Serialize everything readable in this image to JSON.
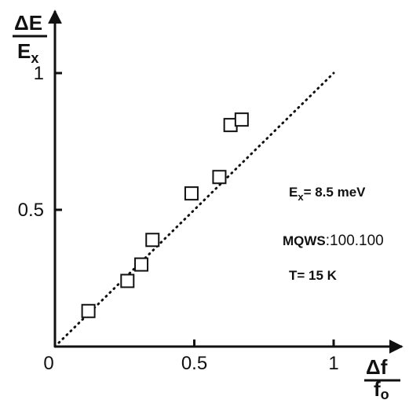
{
  "chart_data": {
    "type": "scatter",
    "xlabel": {
      "num": "Δf",
      "den": "f",
      "den_sub": "o"
    },
    "ylabel": {
      "num": "ΔE",
      "den": "E",
      "den_sub": "x"
    },
    "xlim": [
      0,
      1.2
    ],
    "ylim": [
      0,
      1.05
    ],
    "x_ticks": [
      {
        "value": 0,
        "label": "0"
      },
      {
        "value": 0.5,
        "label": "0.5"
      },
      {
        "value": 1,
        "label": "1"
      }
    ],
    "y_ticks": [
      {
        "value": 0.5,
        "label": "0.5"
      },
      {
        "value": 1,
        "label": "1"
      }
    ],
    "grid": false,
    "marker": "open-square",
    "points": [
      {
        "x": 0.12,
        "y": 0.13
      },
      {
        "x": 0.26,
        "y": 0.24
      },
      {
        "x": 0.31,
        "y": 0.3
      },
      {
        "x": 0.35,
        "y": 0.39
      },
      {
        "x": 0.49,
        "y": 0.56
      },
      {
        "x": 0.59,
        "y": 0.62
      },
      {
        "x": 0.63,
        "y": 0.81
      },
      {
        "x": 0.67,
        "y": 0.83
      }
    ],
    "reference_line": {
      "style": "dotted",
      "from": [
        0,
        0
      ],
      "to": [
        1,
        1
      ]
    },
    "annotations": [
      {
        "main": "E",
        "sub": "x",
        "rest": "= 8.5 meV"
      },
      {
        "main": "MQWS",
        "rest": ":100.100"
      },
      {
        "main": "T= 15 K"
      }
    ]
  }
}
